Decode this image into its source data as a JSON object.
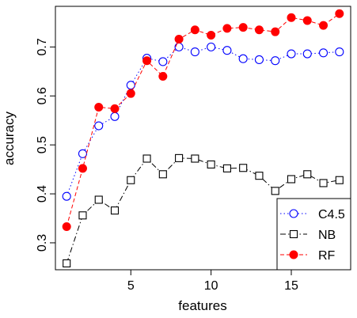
{
  "chart_data": {
    "type": "line",
    "title": "",
    "xlabel": "features",
    "ylabel": "accuracy",
    "xlim": [
      0.3,
      18.7
    ],
    "ylim": [
      0.245,
      0.783
    ],
    "x": [
      1,
      2,
      3,
      4,
      5,
      6,
      7,
      8,
      9,
      10,
      11,
      12,
      13,
      14,
      15,
      16,
      17,
      18
    ],
    "xticks": [
      5,
      10,
      15
    ],
    "yticks": [
      0.3,
      0.4,
      0.5,
      0.6,
      0.7
    ],
    "grid": false,
    "legend_position": "bottom-right",
    "series": [
      {
        "name": "C4.5",
        "color": "#0000ff",
        "marker": "open-circle",
        "line": "dotted",
        "values": [
          0.395,
          0.482,
          0.539,
          0.558,
          0.622,
          0.677,
          0.67,
          0.7,
          0.69,
          0.7,
          0.693,
          0.676,
          0.674,
          0.672,
          0.686,
          0.686,
          0.688,
          0.69
        ]
      },
      {
        "name": "NB",
        "color": "#000000",
        "marker": "open-square",
        "line": "dashdot",
        "values": [
          0.258,
          0.356,
          0.388,
          0.366,
          0.428,
          0.472,
          0.44,
          0.473,
          0.472,
          0.46,
          0.452,
          0.453,
          0.437,
          0.406,
          0.43,
          0.44,
          0.422,
          0.428
        ]
      },
      {
        "name": "RF",
        "color": "#ff0000",
        "marker": "filled-circle",
        "line": "dashed",
        "values": [
          0.333,
          0.452,
          0.577,
          0.574,
          0.605,
          0.672,
          0.64,
          0.716,
          0.735,
          0.724,
          0.738,
          0.74,
          0.735,
          0.731,
          0.76,
          0.754,
          0.744,
          0.768
        ]
      }
    ]
  }
}
